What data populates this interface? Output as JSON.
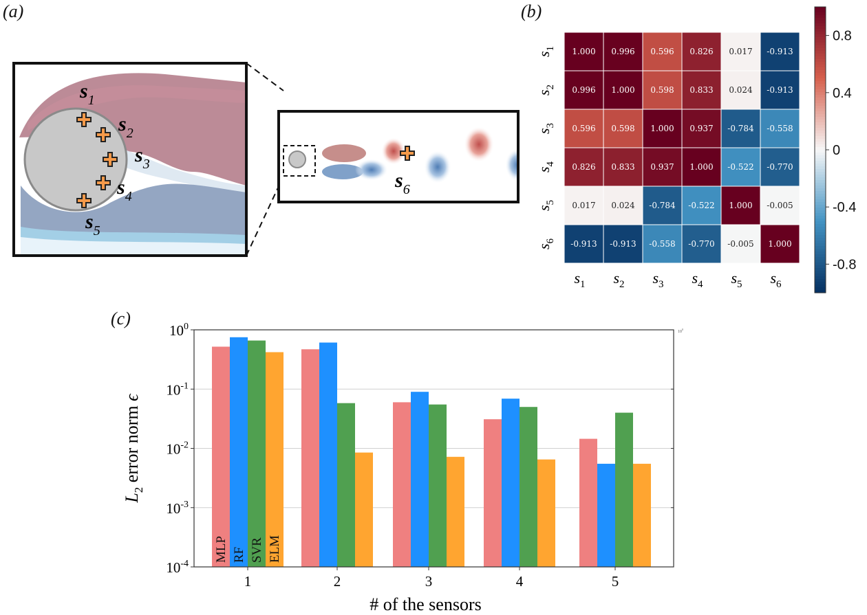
{
  "panels": {
    "a": "(a)",
    "b": "(b)",
    "c": "(c)"
  },
  "flow_diagram": {
    "sensors": [
      {
        "name": "s",
        "sub": "1"
      },
      {
        "name": "s",
        "sub": "2"
      },
      {
        "name": "s",
        "sub": "3"
      },
      {
        "name": "s",
        "sub": "4"
      },
      {
        "name": "s",
        "sub": "5"
      },
      {
        "name": "s",
        "sub": "6"
      }
    ]
  },
  "chart_data": [
    {
      "type": "heatmap",
      "title": "",
      "row_labels": [
        {
          "name": "s",
          "sub": "1"
        },
        {
          "name": "s",
          "sub": "2"
        },
        {
          "name": "s",
          "sub": "3"
        },
        {
          "name": "s",
          "sub": "4"
        },
        {
          "name": "s",
          "sub": "5"
        },
        {
          "name": "s",
          "sub": "6"
        }
      ],
      "col_labels": [
        {
          "name": "s",
          "sub": "1"
        },
        {
          "name": "s",
          "sub": "2"
        },
        {
          "name": "s",
          "sub": "3"
        },
        {
          "name": "s",
          "sub": "4"
        },
        {
          "name": "s",
          "sub": "5"
        },
        {
          "name": "s",
          "sub": "6"
        }
      ],
      "values": [
        [
          "1.000",
          "0.996",
          "0.596",
          "0.826",
          "0.017",
          "-0.913"
        ],
        [
          "0.996",
          "1.000",
          "0.598",
          "0.833",
          "0.024",
          "-0.913"
        ],
        [
          "0.596",
          "0.598",
          "1.000",
          "0.937",
          "-0.784",
          "-0.558"
        ],
        [
          "0.826",
          "0.833",
          "0.937",
          "1.000",
          "-0.522",
          "-0.770"
        ],
        [
          "0.017",
          "0.024",
          "-0.784",
          "-0.522",
          "1.000",
          "-0.005"
        ],
        [
          "-0.913",
          "-0.913",
          "-0.558",
          "-0.770",
          "-0.005",
          "1.000"
        ]
      ],
      "colorbar": {
        "range": [
          -1,
          1
        ],
        "ticks": [
          {
            "v": 0.8,
            "label": "0.8"
          },
          {
            "v": 0.4,
            "label": "0.4"
          },
          {
            "v": 0,
            "label": "0"
          },
          {
            "v": -0.4,
            "label": "-0.4"
          },
          {
            "v": -0.8,
            "label": "-0.8"
          }
        ],
        "colors": {
          "pos": "#67001f",
          "neg": "#053061",
          "mid": "#f7f7f7"
        }
      }
    },
    {
      "type": "bar",
      "scale": "log",
      "categories": [
        "1",
        "2",
        "3",
        "4",
        "5"
      ],
      "series": [
        {
          "name": "MLP",
          "color": "#ef8080",
          "values": [
            0.52,
            0.47,
            0.06,
            0.031,
            0.0145
          ]
        },
        {
          "name": "RF",
          "color": "#1e90ff",
          "values": [
            0.75,
            0.61,
            0.09,
            0.069,
            0.0055
          ]
        },
        {
          "name": "SVR",
          "color": "#50a050",
          "values": [
            0.66,
            0.058,
            0.055,
            0.05,
            0.04
          ]
        },
        {
          "name": "ELM",
          "color": "#ffa530",
          "values": [
            0.42,
            0.0085,
            0.0072,
            0.0065,
            0.0055
          ]
        }
      ],
      "ylim": [
        0.0001,
        1
      ],
      "yticks": [
        {
          "v": 1,
          "base": "10",
          "exp": "0"
        },
        {
          "v": 0.1,
          "base": "10",
          "exp": "-1"
        },
        {
          "v": 0.01,
          "base": "10",
          "exp": "-2"
        },
        {
          "v": 0.001,
          "base": "10",
          "exp": "-3"
        },
        {
          "v": 0.0001,
          "base": "10",
          "exp": "-4"
        }
      ],
      "right_axis_tick": {
        "base": "10",
        "exp": "0"
      },
      "xlabel": "# of the sensors",
      "ylabel": {
        "main": "L",
        "sub": "2",
        "rest": " error norm ",
        "symbol": "ϵ"
      }
    }
  ]
}
